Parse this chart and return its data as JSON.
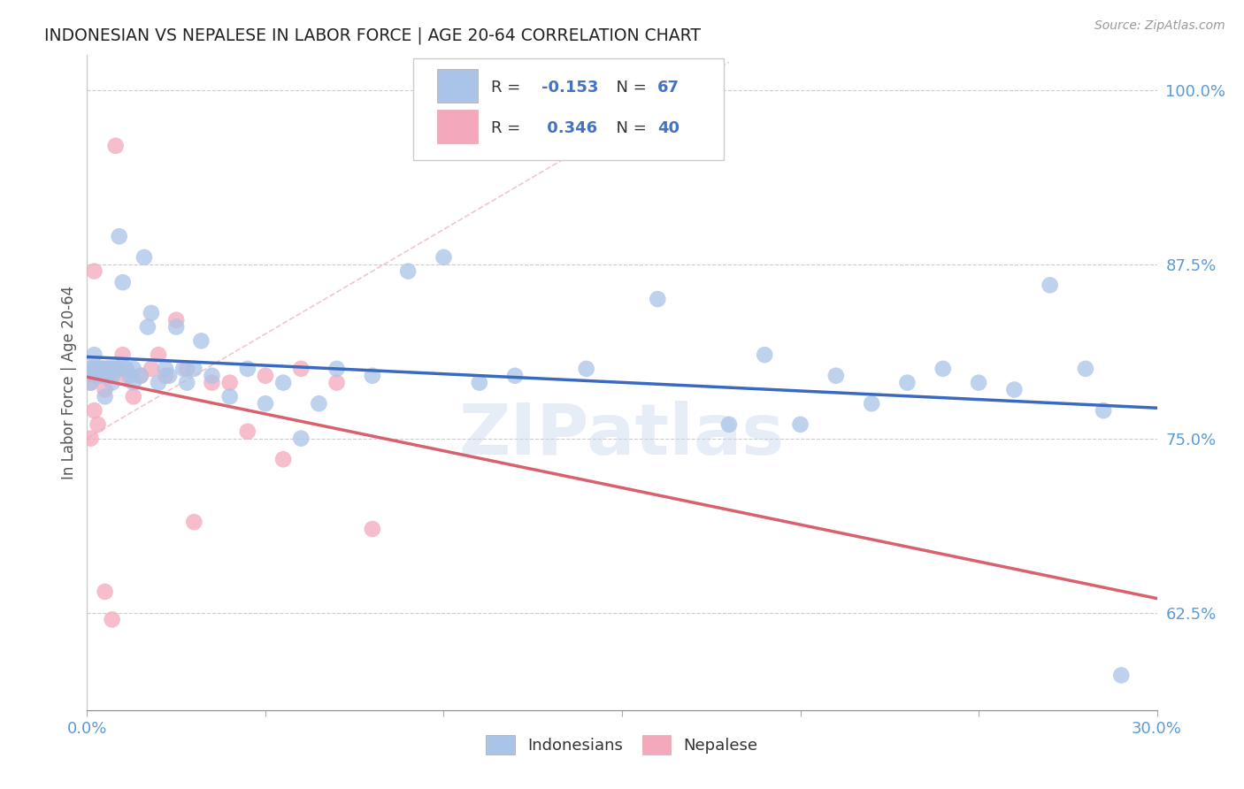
{
  "title": "INDONESIAN VS NEPALESE IN LABOR FORCE | AGE 20-64 CORRELATION CHART",
  "source": "Source: ZipAtlas.com",
  "ylabel": "In Labor Force | Age 20-64",
  "xlim": [
    0.0,
    0.3
  ],
  "ylim": [
    0.555,
    1.025
  ],
  "yticks": [
    0.625,
    0.75,
    0.875,
    1.0
  ],
  "ytick_labels": [
    "62.5%",
    "75.0%",
    "87.5%",
    "100.0%"
  ],
  "xticks": [
    0.0,
    0.05,
    0.1,
    0.15,
    0.2,
    0.25,
    0.3
  ],
  "xtick_labels": [
    "0.0%",
    "",
    "",
    "",
    "",
    "",
    "30.0%"
  ],
  "r_indonesian": -0.153,
  "n_indonesian": 67,
  "r_nepalese": 0.346,
  "n_nepalese": 40,
  "indonesian_color": "#aac4e8",
  "nepalese_color": "#f4a8bb",
  "indonesian_line_color": "#3a6abf",
  "nepalese_line_color": "#d9606e",
  "ref_line_color": "#c8c8c8",
  "watermark": "ZIPatlas",
  "indonesian_x": [
    0.001,
    0.002,
    0.002,
    0.003,
    0.003,
    0.004,
    0.004,
    0.005,
    0.005,
    0.006,
    0.006,
    0.007,
    0.007,
    0.008,
    0.008,
    0.009,
    0.01,
    0.011,
    0.012,
    0.013,
    0.013,
    0.015,
    0.016,
    0.017,
    0.018,
    0.02,
    0.022,
    0.023,
    0.025,
    0.027,
    0.028,
    0.03,
    0.032,
    0.035,
    0.04,
    0.045,
    0.05,
    0.055,
    0.06,
    0.065,
    0.07,
    0.08,
    0.09,
    0.1,
    0.11,
    0.12,
    0.14,
    0.16,
    0.18,
    0.19,
    0.2,
    0.21,
    0.22,
    0.23,
    0.24,
    0.25,
    0.26,
    0.27,
    0.28,
    0.285,
    0.001,
    0.003,
    0.005,
    0.007,
    0.009,
    0.011,
    0.29
  ],
  "indonesian_y": [
    0.8,
    0.8,
    0.81,
    0.795,
    0.8,
    0.8,
    0.8,
    0.8,
    0.795,
    0.8,
    0.795,
    0.8,
    0.79,
    0.8,
    0.8,
    0.895,
    0.862,
    0.8,
    0.795,
    0.8,
    0.79,
    0.795,
    0.88,
    0.83,
    0.84,
    0.79,
    0.8,
    0.795,
    0.83,
    0.8,
    0.79,
    0.8,
    0.82,
    0.795,
    0.78,
    0.8,
    0.775,
    0.79,
    0.75,
    0.775,
    0.8,
    0.795,
    0.87,
    0.88,
    0.79,
    0.795,
    0.8,
    0.85,
    0.76,
    0.81,
    0.76,
    0.795,
    0.775,
    0.79,
    0.8,
    0.79,
    0.785,
    0.86,
    0.8,
    0.77,
    0.79,
    0.8,
    0.78,
    0.8,
    0.8,
    0.8,
    0.58
  ],
  "nepalese_x": [
    0.001,
    0.001,
    0.002,
    0.002,
    0.002,
    0.003,
    0.003,
    0.004,
    0.004,
    0.005,
    0.005,
    0.006,
    0.006,
    0.007,
    0.007,
    0.008,
    0.009,
    0.01,
    0.011,
    0.013,
    0.015,
    0.018,
    0.02,
    0.022,
    0.025,
    0.028,
    0.03,
    0.035,
    0.04,
    0.045,
    0.05,
    0.055,
    0.06,
    0.07,
    0.08,
    0.001,
    0.002,
    0.003,
    0.005,
    0.007
  ],
  "nepalese_y": [
    0.8,
    0.79,
    0.8,
    0.795,
    0.87,
    0.8,
    0.8,
    0.795,
    0.8,
    0.8,
    0.785,
    0.8,
    0.8,
    0.795,
    0.8,
    0.96,
    0.8,
    0.81,
    0.795,
    0.78,
    0.795,
    0.8,
    0.81,
    0.795,
    0.835,
    0.8,
    0.69,
    0.79,
    0.79,
    0.755,
    0.795,
    0.735,
    0.8,
    0.79,
    0.685,
    0.75,
    0.77,
    0.76,
    0.64,
    0.62
  ]
}
